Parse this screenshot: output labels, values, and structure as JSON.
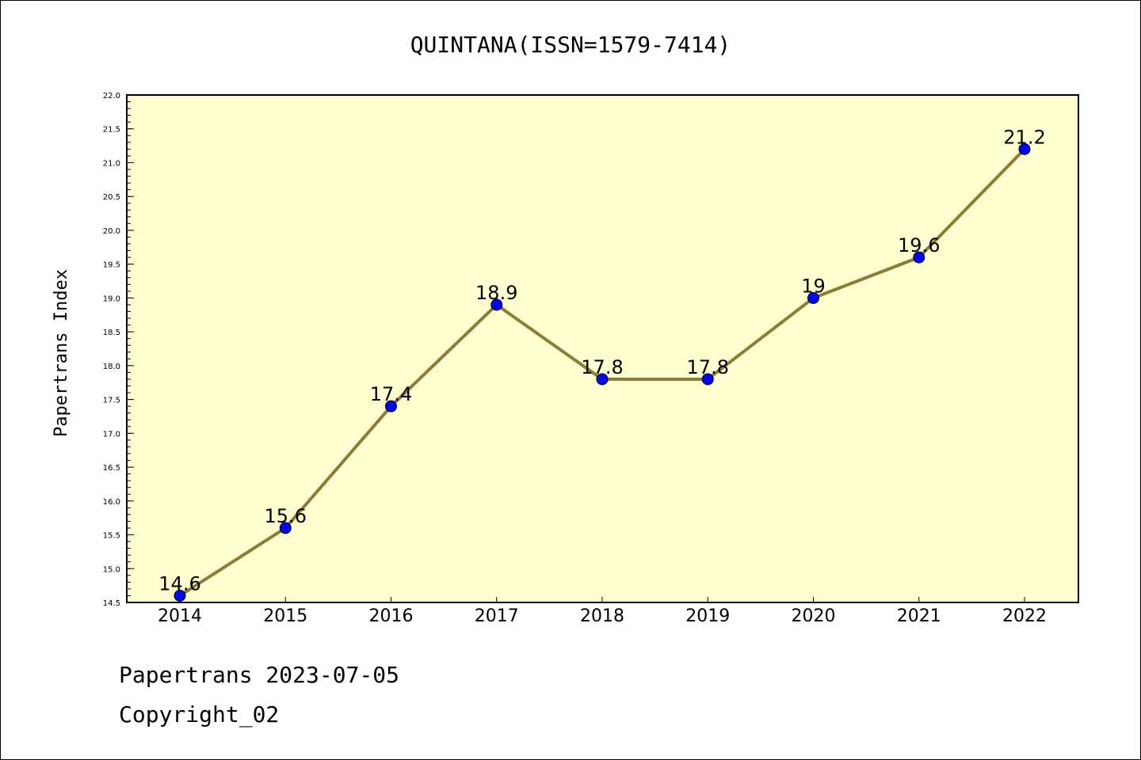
{
  "chart_data": {
    "type": "line",
    "title": "QUINTANA(ISSN=1579-7414)",
    "xlabel": "",
    "ylabel": "Papertrans Index",
    "x": [
      "2014",
      "2015",
      "2016",
      "2017",
      "2018",
      "2019",
      "2020",
      "2021",
      "2022"
    ],
    "series": [
      {
        "values": [
          14.6,
          15.6,
          17.4,
          18.9,
          17.8,
          17.8,
          19.0,
          19.6,
          21.2
        ],
        "labels": [
          "14.6",
          "15.6",
          "17.4",
          "18.9",
          "17.8",
          "17.8",
          "19",
          "19.6",
          "21.2"
        ]
      }
    ],
    "ylim": [
      14.5,
      22.0
    ],
    "yticks": [
      "14.5",
      "15.0",
      "15.5",
      "16.0",
      "16.5",
      "17.0",
      "17.5",
      "18.0",
      "18.5",
      "19.0",
      "19.5",
      "20.0",
      "20.5",
      "21.0",
      "21.5",
      "22.0"
    ],
    "grid": false,
    "colors": {
      "plot_background": "#ffffd0",
      "line": "#8b7d35",
      "marker": "#0000ff"
    }
  },
  "footer": {
    "line1": "Papertrans 2023-07-05",
    "line2": "Copyright_02"
  }
}
